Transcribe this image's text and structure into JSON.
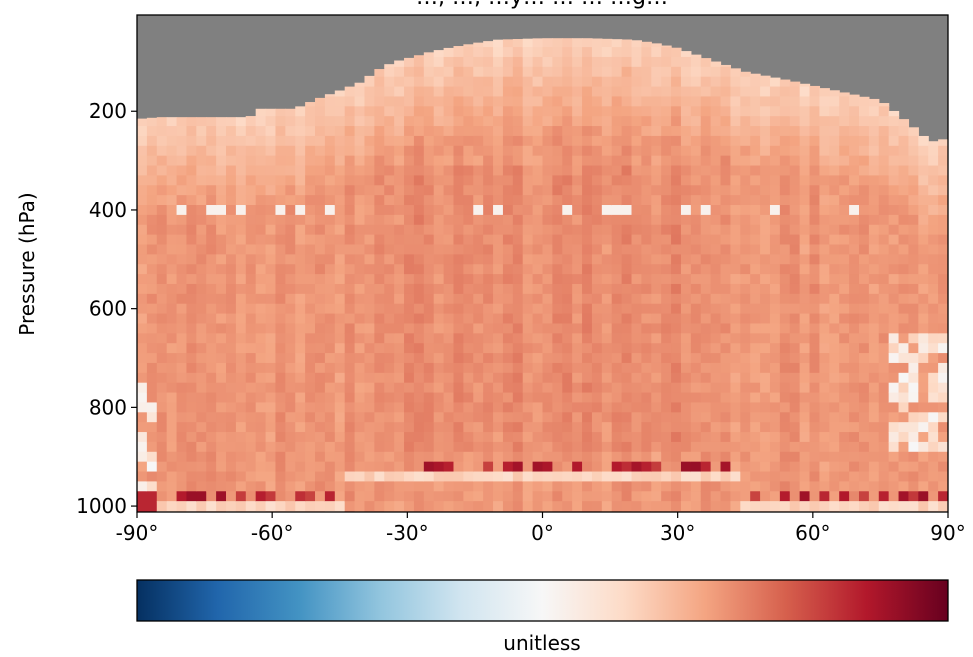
{
  "chart_data": {
    "type": "heatmap",
    "title": "…, …, …y… … … …g…",
    "ylabel": "Pressure (hPa)",
    "xlabel": "",
    "colorbar_label": "unitless",
    "x_ticks": [
      {
        "value": -90,
        "label": "-90°"
      },
      {
        "value": -60,
        "label": "-60°"
      },
      {
        "value": -30,
        "label": "-30°"
      },
      {
        "value": 0,
        "label": "0°"
      },
      {
        "value": 30,
        "label": "30°"
      },
      {
        "value": 60,
        "label": "60°"
      },
      {
        "value": 90,
        "label": "90°"
      }
    ],
    "y_ticks": [
      {
        "value": 200,
        "label": "200"
      },
      {
        "value": 400,
        "label": "400"
      },
      {
        "value": 600,
        "label": "600"
      },
      {
        "value": 800,
        "label": "800"
      },
      {
        "value": 1000,
        "label": "1000"
      }
    ],
    "xlim": [
      -90,
      90
    ],
    "ylim": [
      1012,
      5
    ],
    "colormap": "RdBu_r",
    "missing_color": "#808080",
    "colormap_stops": [
      "#053061",
      "#2166ac",
      "#4393c3",
      "#92c5de",
      "#d1e5f0",
      "#f7f7f7",
      "#fddbc7",
      "#f4a582",
      "#d6604d",
      "#b2182b",
      "#67001f"
    ],
    "surface_top_pressure": [
      {
        "lat": -90,
        "p": 240
      },
      {
        "lat": -89,
        "p": 215
      },
      {
        "lat": -85,
        "p": 212
      },
      {
        "lat": -70,
        "p": 212
      },
      {
        "lat": -65,
        "p": 212
      },
      {
        "lat": -63,
        "p": 195
      },
      {
        "lat": -55,
        "p": 195
      },
      {
        "lat": -50,
        "p": 175
      },
      {
        "lat": -45,
        "p": 158
      },
      {
        "lat": -40,
        "p": 140
      },
      {
        "lat": -37,
        "p": 118
      },
      {
        "lat": -33,
        "p": 100
      },
      {
        "lat": -28,
        "p": 88
      },
      {
        "lat": -25,
        "p": 80
      },
      {
        "lat": -20,
        "p": 70
      },
      {
        "lat": -15,
        "p": 62
      },
      {
        "lat": -10,
        "p": 55
      },
      {
        "lat": 0,
        "p": 52
      },
      {
        "lat": 10,
        "p": 52
      },
      {
        "lat": 20,
        "p": 55
      },
      {
        "lat": 25,
        "p": 62
      },
      {
        "lat": 30,
        "p": 72
      },
      {
        "lat": 33,
        "p": 82
      },
      {
        "lat": 38,
        "p": 98
      },
      {
        "lat": 45,
        "p": 120
      },
      {
        "lat": 55,
        "p": 138
      },
      {
        "lat": 65,
        "p": 158
      },
      {
        "lat": 75,
        "p": 178
      },
      {
        "lat": 78,
        "p": 200
      },
      {
        "lat": 82,
        "p": 230
      },
      {
        "lat": 86,
        "p": 262
      },
      {
        "lat": 90,
        "p": 255
      }
    ]
  }
}
